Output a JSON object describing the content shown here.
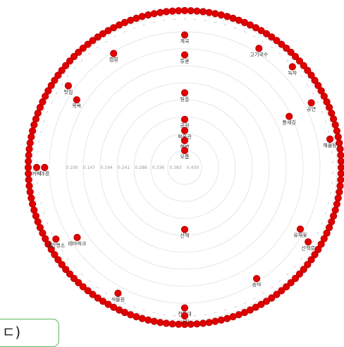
{
  "colors": {
    "node": "#e00000",
    "ring": "#e6e6e6",
    "tick": "#9a9a9a",
    "button_border": "#5cb85c"
  },
  "partial_button": {
    "label": "ㄷ)"
  },
  "chart_data": {
    "type": "radial-scatter",
    "title": "",
    "ring_ticks": [
      "0.100",
      "0.147",
      "0.194",
      "0.241",
      "0.288",
      "0.336",
      "0.383",
      "0.430"
    ],
    "nodes": [
      {
        "label": "계곡",
        "value": 0.14,
        "angle": 0
      },
      {
        "label": "등굴",
        "value": 0.19,
        "angle": 0
      },
      {
        "label": "일출",
        "value": 0.285,
        "angle": 0
      },
      {
        "label": "공원",
        "value": 0.352,
        "angle": 0
      },
      {
        "label": "박물관",
        "value": 0.38,
        "angle": 0
      },
      {
        "label": "해변",
        "value": 0.405,
        "angle": 0
      },
      {
        "label": "오름",
        "value": 0.43,
        "angle": 0
      },
      {
        "label": "고기국수",
        "value": 0.12,
        "angle": 32
      },
      {
        "label": "공연",
        "value": 0.115,
        "angle": 63
      },
      {
        "label": "돌새깅",
        "value": 0.18,
        "angle": 64
      },
      {
        "label": "녹차",
        "value": 0.102,
        "angle": 47
      },
      {
        "label": "해물탕",
        "value": 0.1,
        "angle": 79
      },
      {
        "label": "유채꽃",
        "value": 0.143,
        "angle": 118
      },
      {
        "label": "산책로",
        "value": 0.11,
        "angle": 121
      },
      {
        "label": "승마",
        "value": 0.14,
        "angle": 147
      },
      {
        "label": "산책",
        "value": 0.317,
        "angle": 180
      },
      {
        "label": "전망대",
        "value": 0.12,
        "angle": 180
      },
      {
        "label": "시장",
        "value": 0.1,
        "angle": 180
      },
      {
        "label": "식물원",
        "value": 0.115,
        "angle": 208
      },
      {
        "label": "야간명소",
        "value": 0.102,
        "angle": 241
      },
      {
        "label": "테마파크",
        "value": 0.15,
        "angle": 237
      },
      {
        "label": "야경",
        "value": 0.12,
        "angle": 270
      },
      {
        "label": "카페",
        "value": 0.1,
        "angle": 270
      },
      {
        "label": "목욕",
        "value": 0.152,
        "angle": 302
      },
      {
        "label": "맛집",
        "value": 0.115,
        "angle": 305
      },
      {
        "label": "캠핑",
        "value": 0.135,
        "angle": 328
      }
    ]
  }
}
